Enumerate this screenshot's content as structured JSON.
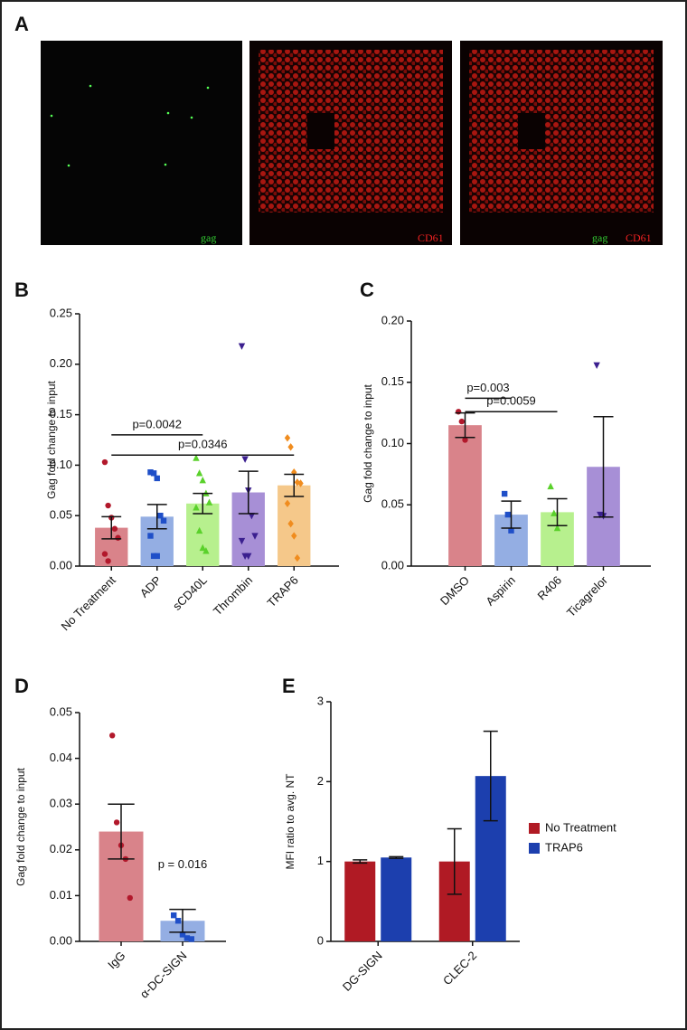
{
  "panel_a": {
    "label": "A",
    "images": [
      {
        "labels": [
          "gag"
        ]
      },
      {
        "labels": [
          "CD61"
        ]
      },
      {
        "labels": [
          "gag",
          "CD61"
        ]
      }
    ]
  },
  "chart_data": [
    {
      "panel": "B",
      "type": "bar",
      "ylabel": "Gag fold change to input",
      "categories": [
        "No Treatment",
        "ADP",
        "sCD40L",
        "Thrombin",
        "TRAP6"
      ],
      "values": [
        0.038,
        0.049,
        0.062,
        0.073,
        0.08
      ],
      "errors": [
        0.011,
        0.012,
        0.01,
        0.021,
        0.011
      ],
      "colors": [
        "#d9838a",
        "#94aee3",
        "#b7f08e",
        "#a78fd6",
        "#f5c88a"
      ],
      "point_colors": [
        "#b2182b",
        "#1f4fc8",
        "#5ad12b",
        "#3b1f8f",
        "#f08c1e"
      ],
      "markers": [
        "circle",
        "square",
        "triangle",
        "inverted-triangle",
        "diamond"
      ],
      "points": [
        [
          0.103,
          0.06,
          0.048,
          0.037,
          0.028,
          0.012,
          0.005
        ],
        [
          0.093,
          0.092,
          0.087,
          0.05,
          0.045,
          0.03,
          0.01,
          0.01
        ],
        [
          0.107,
          0.092,
          0.085,
          0.072,
          0.063,
          0.058,
          0.035,
          0.018,
          0.015
        ],
        [
          0.218,
          0.106,
          0.075,
          0.05,
          0.03,
          0.025,
          0.01,
          0.01
        ],
        [
          0.127,
          0.118,
          0.093,
          0.083,
          0.082,
          0.062,
          0.042,
          0.03,
          0.008
        ]
      ],
      "ylim": [
        0,
        0.25
      ],
      "yticks": [
        {
          "value": 0,
          "label": "0.00"
        },
        0.05,
        {
          "value": 0.1,
          "label": "0.10"
        },
        0.15,
        {
          "value": 0.2,
          "label": "0.20"
        },
        0.25
      ],
      "annotations": [
        {
          "text": "p=0.0042",
          "from": 0,
          "to": 2,
          "y": 0.13
        },
        {
          "text": "p=0.0346",
          "from": 0,
          "to": 4,
          "y": 0.11
        }
      ]
    },
    {
      "panel": "C",
      "type": "bar",
      "ylabel": "Gag fold change to input",
      "categories": [
        "DMSO",
        "Aspirin",
        "R406",
        "Ticagrelor"
      ],
      "values": [
        0.115,
        0.042,
        0.044,
        0.081
      ],
      "errors": [
        0.01,
        0.011,
        0.011,
        0.041
      ],
      "colors": [
        "#d9838a",
        "#94aee3",
        "#b7f08e",
        "#a78fd6"
      ],
      "point_colors": [
        "#b2182b",
        "#1f4fc8",
        "#5ad12b",
        "#3b1f8f"
      ],
      "markers": [
        "circle",
        "square",
        "triangle",
        "inverted-triangle"
      ],
      "points": [
        [
          0.126,
          0.118,
          0.103
        ],
        [
          0.059,
          0.042,
          0.029
        ],
        [
          0.065,
          0.043,
          0.031
        ],
        [
          0.164,
          0.042,
          0.041
        ]
      ],
      "ylim": [
        0,
        0.2
      ],
      "yticks": [
        {
          "value": 0,
          "label": "0.00"
        },
        0.05,
        {
          "value": 0.1,
          "label": "0.10"
        },
        0.15,
        {
          "value": 0.2,
          "label": "0.20"
        }
      ],
      "annotations": [
        {
          "text": "p=0.003",
          "from": 0,
          "to": 1,
          "y": 0.137
        },
        {
          "text": "p=0.0059",
          "from": 0,
          "to": 2,
          "y": 0.126
        }
      ]
    },
    {
      "panel": "D",
      "type": "bar",
      "ylabel": "Gag fold change to input",
      "categories": [
        "IgG",
        "α-DC-SIGN"
      ],
      "values": [
        0.024,
        0.0045
      ],
      "errors": [
        0.006,
        0.0025
      ],
      "colors": [
        "#d9838a",
        "#94aee3"
      ],
      "point_colors": [
        "#b2182b",
        "#1f4fc8"
      ],
      "markers": [
        "circle",
        "square"
      ],
      "points": [
        [
          0.045,
          0.026,
          0.021,
          0.018,
          0.0095
        ],
        [
          0.0057,
          0.0045,
          0.0015,
          0.0007,
          0.0005
        ]
      ],
      "ylim": [
        0,
        0.05
      ],
      "yticks": [
        {
          "value": 0,
          "label": "0.00"
        },
        0.01,
        0.02,
        0.03,
        0.04,
        0.05
      ],
      "annotations": [
        {
          "text": "p = 0.016",
          "from": 1,
          "to": 1,
          "y": 0.0145
        }
      ]
    },
    {
      "panel": "E",
      "type": "grouped_bar",
      "ylabel": "MFI ratio to avg. NT",
      "categories": [
        "DG-SIGN",
        "CLEC-2"
      ],
      "series": [
        {
          "name": "No Treatment",
          "color": "#b01a24",
          "values": [
            1.0,
            1.0
          ],
          "errors": [
            0.02,
            0.41
          ]
        },
        {
          "name": "TRAP6",
          "color": "#1c3fae",
          "values": [
            1.05,
            2.07
          ],
          "errors": [
            0.01,
            0.56
          ]
        }
      ],
      "ylim": [
        0,
        3
      ],
      "yticks": [
        0,
        1,
        2,
        3
      ],
      "legend": "right"
    }
  ]
}
